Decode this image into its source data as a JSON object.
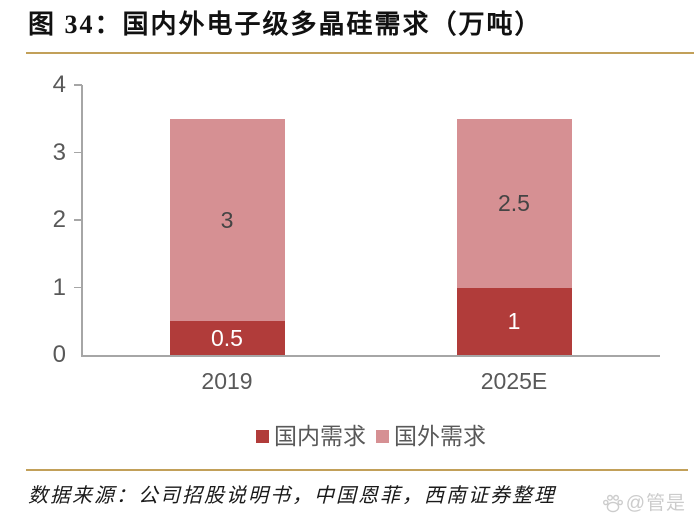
{
  "figure": {
    "title": "图 34：国内外电子级多晶硅需求（万吨）",
    "source": "数据来源：公司招股说明书，中国恩菲，西南证券整理",
    "watermark": "@管是"
  },
  "colors": {
    "domestic": "#b13c3a",
    "foreign": "#d69093",
    "rule_gold": "#c2a059",
    "axis": "#a6a6a6",
    "tick_label": "#595959",
    "label_on_light": "#444444",
    "label_on_dark": "#ffffff",
    "watermark": "#cccccc"
  },
  "chart_data": {
    "type": "bar",
    "stacked": true,
    "title": "国内外电子级多晶硅需求（万吨）",
    "categories": [
      "2019",
      "2025E"
    ],
    "series": [
      {
        "key": "domestic",
        "name": "国内需求",
        "values": [
          0.5,
          1
        ],
        "color": "#b13c3a",
        "label_color": "#ffffff"
      },
      {
        "key": "foreign",
        "name": "国外需求",
        "values": [
          3,
          2.5
        ],
        "color": "#d69093",
        "label_color": "#444444"
      }
    ],
    "xlabel": "",
    "ylabel": "",
    "ylim": [
      0,
      4
    ],
    "yticks": [
      0,
      1,
      2,
      3,
      4
    ],
    "grid": false,
    "legend_position": "bottom"
  }
}
